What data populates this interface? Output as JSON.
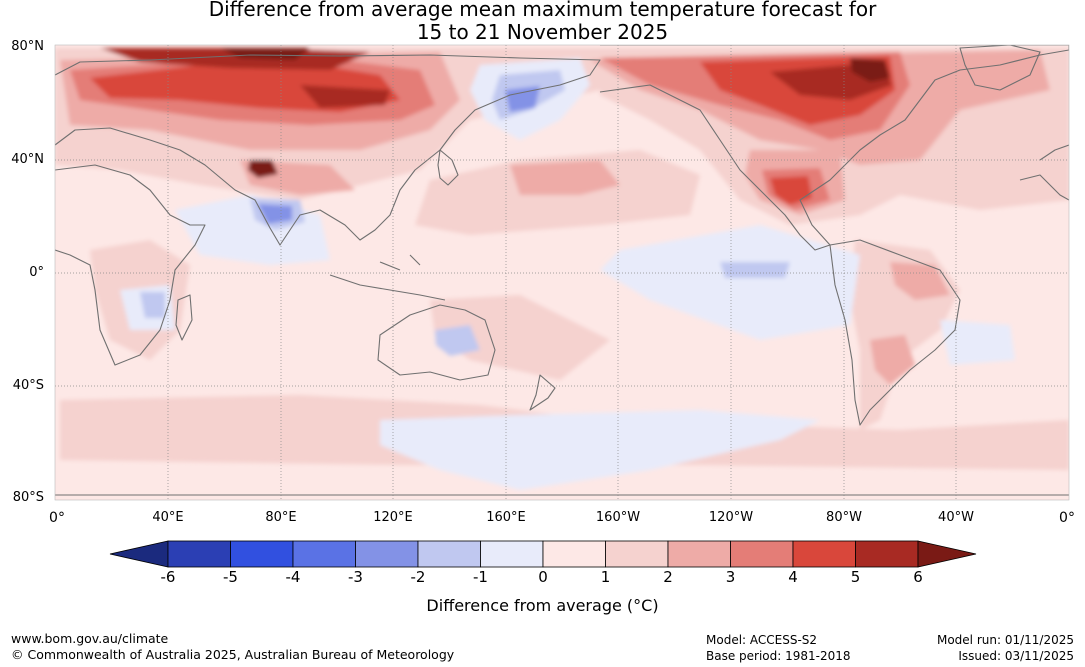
{
  "header": {
    "title_line1": "Difference from average mean maximum temperature forecast for",
    "title_line2": "15 to 21 November 2025"
  },
  "map": {
    "lat_labels": [
      "80°N",
      "40°N",
      "0°",
      "40°S",
      "80°S"
    ],
    "lon_labels": [
      "0°",
      "40°E",
      "80°E",
      "120°E",
      "160°E",
      "160°W",
      "120°W",
      "80°W",
      "40°W",
      "0°"
    ],
    "projection": "equirectangular 0°E to 360°E",
    "ocean_color": "#fde8e6",
    "coastline_color": "#707070",
    "anomaly_regions": [
      {
        "name": "northern Europe and Siberia",
        "anomaly_c": 4,
        "color": "#d9473b"
      },
      {
        "name": "central Siberia",
        "anomaly_c": 5,
        "color": "#a82a23"
      },
      {
        "name": "Central Asia",
        "anomaly_c": 6,
        "color": "#7a1a15"
      },
      {
        "name": "eastern Siberia",
        "anomaly_c": -2,
        "color": "#c0c8f0"
      },
      {
        "name": "India",
        "anomaly_c": -3,
        "color": "#8392e6"
      },
      {
        "name": "Canada",
        "anomaly_c": 4,
        "color": "#d9473b"
      },
      {
        "name": "Hudson Bay",
        "anomaly_c": 6,
        "color": "#7a1a15"
      },
      {
        "name": "southern USA",
        "anomaly_c": 4,
        "color": "#d9473b"
      },
      {
        "name": "Australia",
        "anomaly_c": -2,
        "color": "#c0c8f0"
      },
      {
        "name": "Southern Ocean",
        "anomaly_c": -1,
        "color": "#e8ebfa"
      },
      {
        "name": "equatorial Pacific",
        "anomaly_c": -1,
        "color": "#e8ebfa"
      },
      {
        "name": "South America",
        "anomaly_c": 3,
        "color": "#e47d77"
      }
    ]
  },
  "colorbar": {
    "title": "Difference from average (°C)",
    "tick_labels": [
      "-6",
      "-5",
      "-4",
      "-3",
      "-2",
      "-1",
      "0",
      "1",
      "2",
      "3",
      "4",
      "5",
      "6"
    ],
    "colors": [
      "#1b2a7e",
      "#2b3fb4",
      "#3150e0",
      "#5a72e5",
      "#8392e6",
      "#c0c8f0",
      "#e8ebfa",
      "#fde8e6",
      "#f5d2cf",
      "#eeaba7",
      "#e47d77",
      "#d9473b",
      "#a82a23",
      "#7a1a15"
    ]
  },
  "footer": {
    "website": "www.bom.gov.au/climate",
    "copyright": "© Commonwealth of Australia 2025, Australian Bureau of Meteorology",
    "model": "Model: ACCESS-S2",
    "base_period": "Base period: 1981-2018",
    "model_run": "Model run: 01/11/2025",
    "issued": "Issued: 03/11/2025"
  }
}
